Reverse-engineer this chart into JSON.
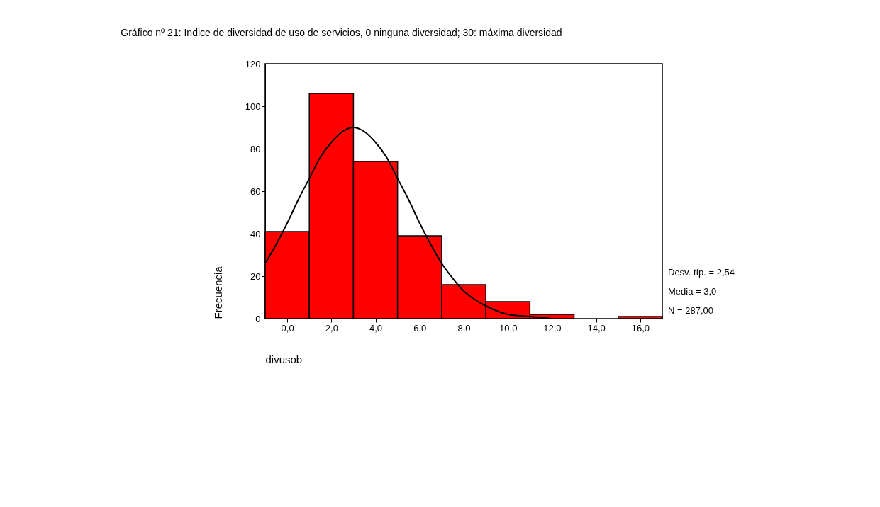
{
  "chart_data": {
    "type": "histogram",
    "title": "Gráfico nº 21: Indice de diversidad de uso de servicios, 0 ninguna diversidad; 30: máxima diversidad",
    "xlabel": "divusob",
    "ylabel": "Frecuencia",
    "bins": [
      -1,
      1,
      3,
      5,
      7,
      9,
      11,
      13,
      15,
      17
    ],
    "values": [
      41,
      106,
      74,
      39,
      16,
      8,
      2,
      0,
      1
    ],
    "color": "#ff0000",
    "series": [
      {
        "type": "line",
        "color": "#000000",
        "x": [
          -1,
          -0.5,
          0,
          0.5,
          1,
          1.5,
          2,
          2.5,
          3,
          3.5,
          4,
          4.5,
          5,
          5.5,
          6,
          6.5,
          7,
          7.5,
          8,
          8.5,
          9,
          10,
          11,
          12
        ],
        "values": [
          26,
          35,
          45,
          56,
          66,
          76,
          83,
          88,
          90,
          88,
          83,
          76,
          66,
          56,
          45,
          35,
          26,
          19,
          13,
          9,
          6,
          2,
          1,
          0
        ]
      }
    ],
    "xlim": [
      -1,
      17
    ],
    "xticks": [
      {
        "value": 0,
        "label": "0,0"
      },
      {
        "value": 2,
        "label": "2,0"
      },
      {
        "value": 4,
        "label": "4,0"
      },
      {
        "value": 6,
        "label": "6,0"
      },
      {
        "value": 8,
        "label": "8,0"
      },
      {
        "value": 10,
        "label": "10,0"
      },
      {
        "value": 12,
        "label": "12,0"
      },
      {
        "value": 14,
        "label": "14,0"
      },
      {
        "value": 16,
        "label": "16,0"
      }
    ],
    "ylim": [
      0,
      120
    ],
    "yticks": [
      0,
      20,
      40,
      60,
      80,
      100,
      120
    ],
    "grid": false,
    "annotations": [
      "Desv. típ. = 2,54",
      "Media = 3,0",
      "N = 287,00"
    ]
  }
}
